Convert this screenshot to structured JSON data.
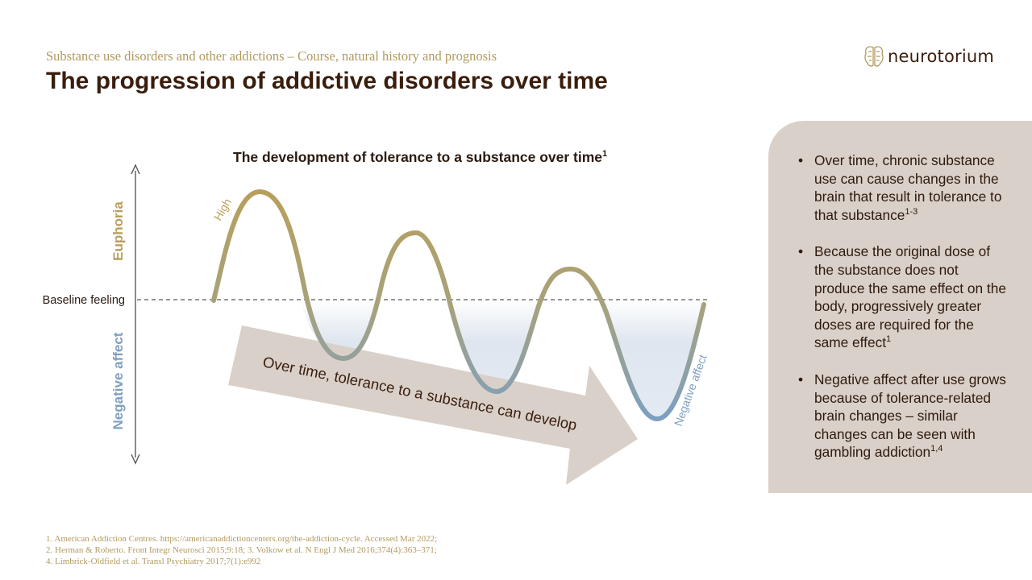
{
  "header": {
    "subtitle": "Substance use disorders and other addictions – Course, natural history and prognosis",
    "title": "The progression of addictive disorders over time"
  },
  "logo": {
    "text": "neurotorium",
    "icon": "brain-circuit-logo-icon"
  },
  "diagram": {
    "title": "The development of tolerance to a substance over time",
    "title_sup": "1",
    "axis_top_label": "Euphoria",
    "axis_bottom_label": "Negative affect",
    "baseline_label": "Baseline feeling",
    "high_label": "High",
    "negative_label": "Negative affect",
    "arrow_text": "Over time, tolerance to a substance can develop",
    "colors": {
      "positive": "#b79f5c",
      "negative": "#7e9fc0",
      "arrow": "#d9d0ca"
    }
  },
  "bullets": [
    {
      "text": "Over time, chronic substance use can cause changes in the brain that result in tolerance to that substance",
      "sup": "1-3"
    },
    {
      "text": "Because the original dose of the substance does not produce the same effect on the body, progressively greater doses are required for the same effect",
      "sup": "1"
    },
    {
      "text": "Negative affect after use grows because of tolerance-related brain changes – similar changes can be seen with gambling addiction",
      "sup": "1,4"
    }
  ],
  "references": [
    "1. American Addiction Centres. https://americanaddictioncenters.org/the-addiction-cycle.  Accessed Mar 2022;",
    "2. Herman & Roberto. Front Integr Neurosci 2015;9:18; 3. Volkow et al. N Engl J Med 2016;374(4):363–371;",
    "4. Limbrick-Oldfield et al. Transl Psychiatry 2017;7(1):e992"
  ]
}
